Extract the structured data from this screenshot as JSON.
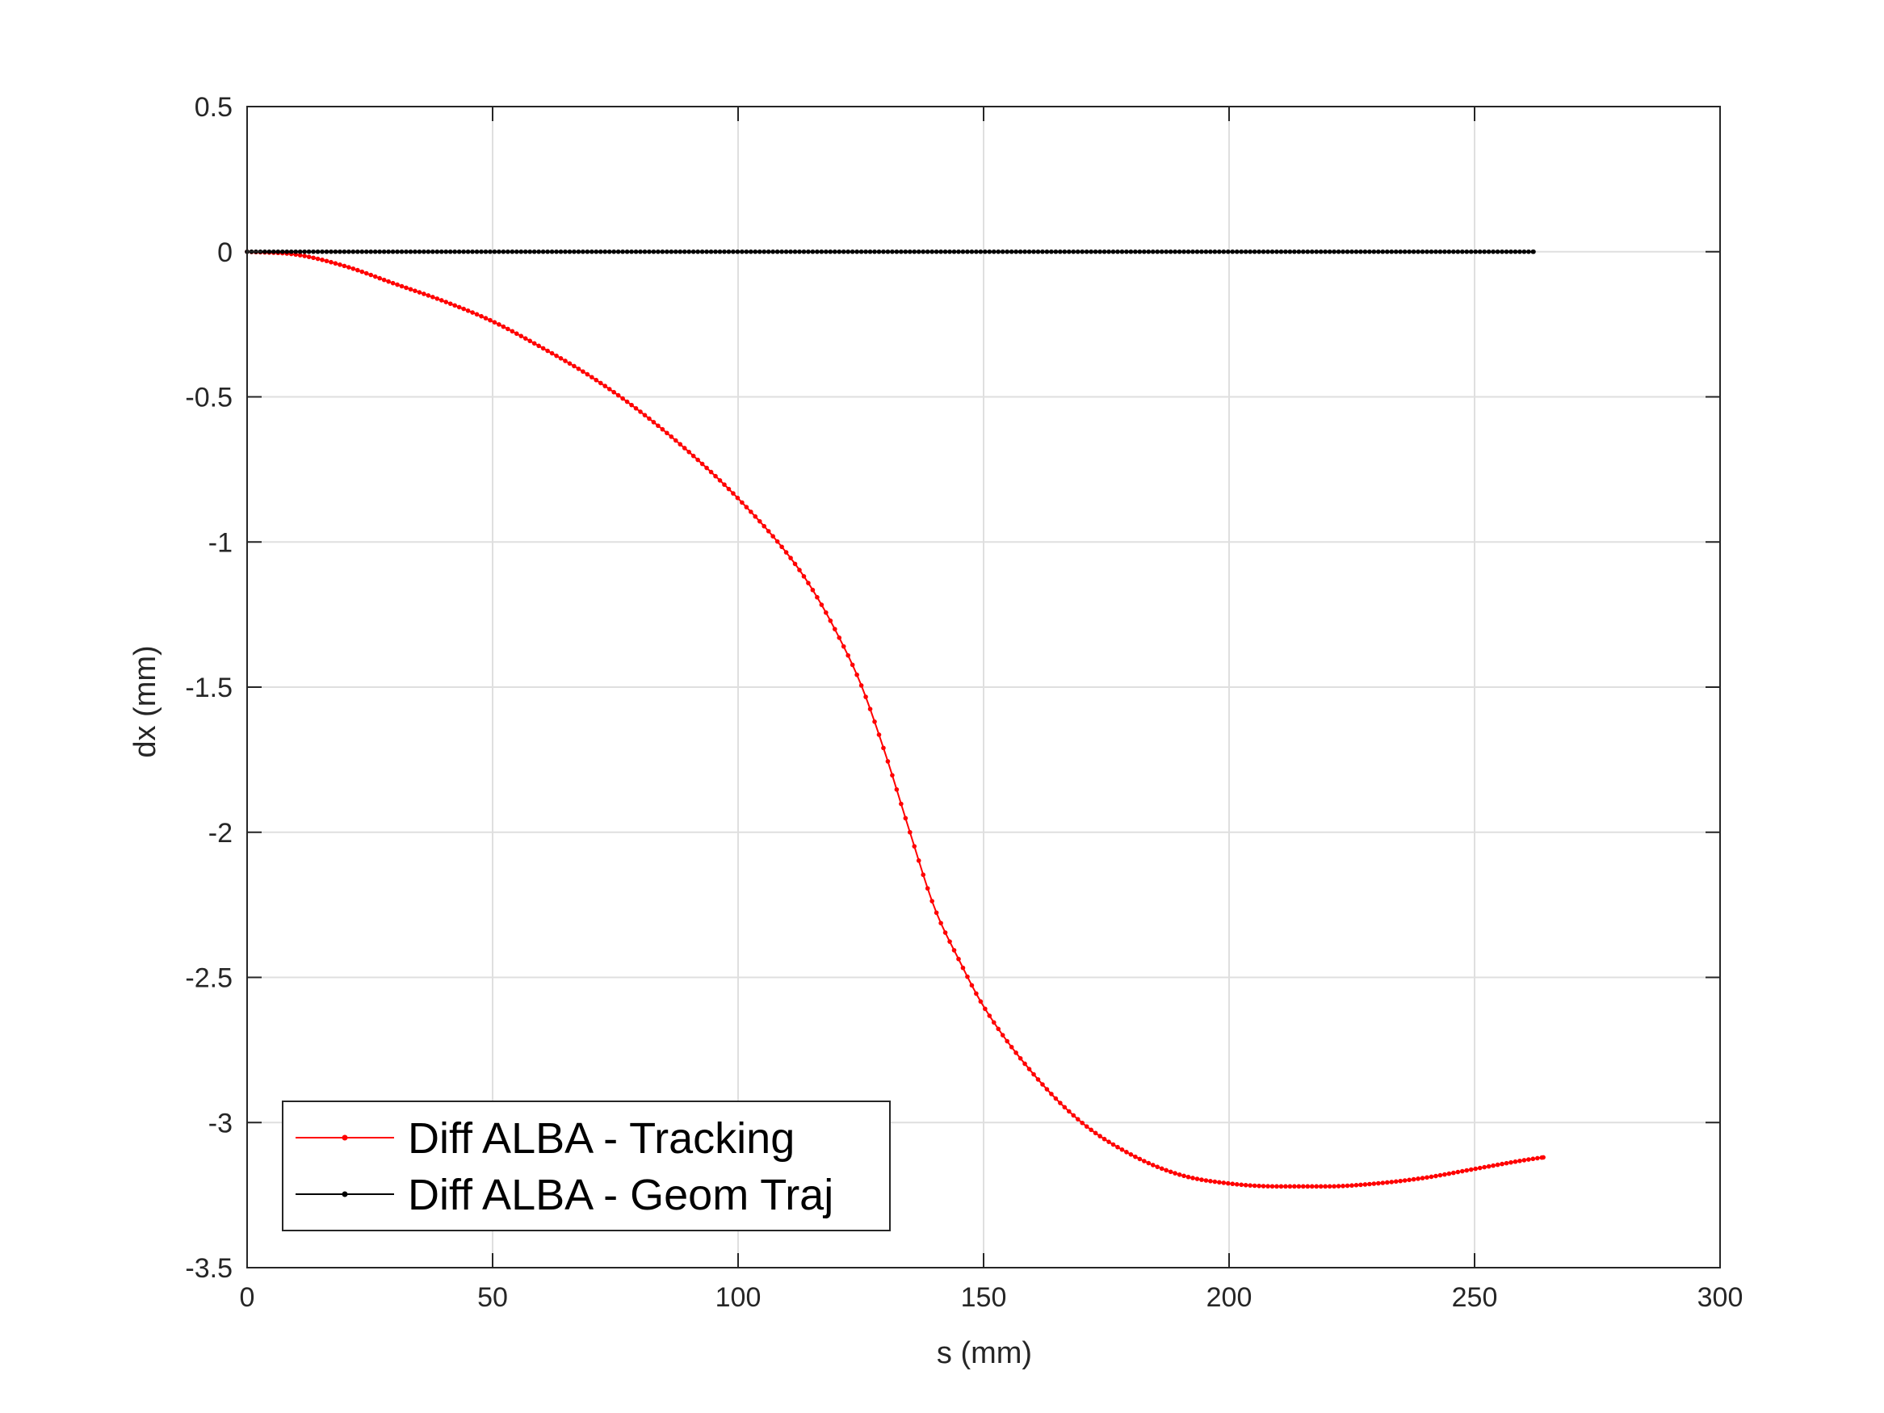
{
  "chart_data": {
    "type": "line",
    "title": "",
    "xlabel": "s (mm)",
    "ylabel": "dx (mm)",
    "xlim": [
      0,
      300
    ],
    "ylim": [
      -3.5,
      0.5
    ],
    "xticks": [
      0,
      50,
      100,
      150,
      200,
      250,
      300
    ],
    "yticks": [
      0.5,
      0,
      -0.5,
      -1,
      -1.5,
      -2,
      -2.5,
      -3,
      -3.5
    ],
    "xtick_labels": [
      "0",
      "50",
      "100",
      "150",
      "200",
      "250",
      "300"
    ],
    "ytick_labels": [
      "0.5",
      "0",
      "-0.5",
      "-1",
      "-1.5",
      "-2",
      "-2.5",
      "-3",
      "-3.5"
    ],
    "grid": true,
    "box": true,
    "legend_location": "bottom-left",
    "series": [
      {
        "name": "Diff ALBA - Tracking",
        "color": "#ff0000",
        "marker": "dot",
        "x": [
          0,
          10,
          20,
          30,
          40,
          50,
          60,
          70,
          80,
          90,
          100,
          110,
          115,
          120,
          125,
          130,
          135,
          140,
          145,
          150,
          160,
          170,
          180,
          190,
          200,
          210,
          220,
          230,
          240,
          250,
          260,
          264
        ],
        "y": [
          0,
          -0.01,
          -0.05,
          -0.11,
          -0.17,
          -0.24,
          -0.33,
          -0.43,
          -0.55,
          -0.69,
          -0.85,
          -1.04,
          -1.16,
          -1.31,
          -1.49,
          -1.73,
          -2.0,
          -2.26,
          -2.44,
          -2.6,
          -2.83,
          -3.0,
          -3.11,
          -3.18,
          -3.21,
          -3.22,
          -3.22,
          -3.21,
          -3.19,
          -3.16,
          -3.13,
          -3.12
        ]
      },
      {
        "name": "Diff ALBA - Geom Traj",
        "color": "#000000",
        "marker": "dot",
        "x": [
          0,
          50,
          100,
          150,
          200,
          250,
          262
        ],
        "y": [
          0,
          0,
          0,
          0,
          0,
          0,
          0
        ]
      }
    ]
  }
}
